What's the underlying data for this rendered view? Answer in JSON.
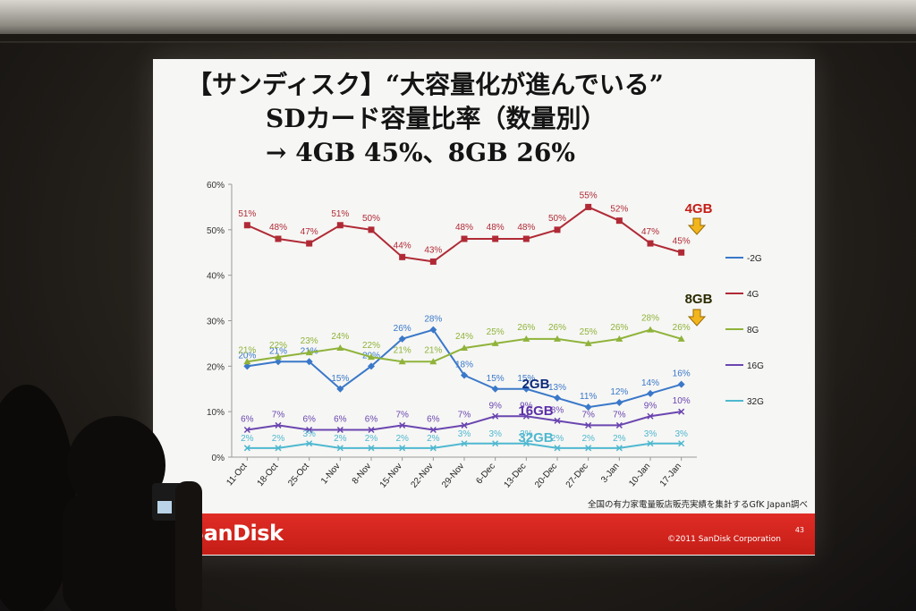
{
  "slide": {
    "title_line1": "【サンディスク】“大容量化が進んでいる”",
    "title_line2": "SDカード容量比率（数量別）",
    "title_line3": "→ 4GB 45%、8GB 26%",
    "footnote": "全国の有力家電量販店販売実績を集計するGfK Japan調べ",
    "brand": "SanDisk",
    "copyright": "©2011 SanDisk Corporation",
    "page_number": "43"
  },
  "chart_data": {
    "type": "line",
    "categories": [
      "11-Oct",
      "18-Oct",
      "25-Oct",
      "1-Nov",
      "8-Nov",
      "15-Nov",
      "22-Nov",
      "29-Nov",
      "6-Dec",
      "13-Dec",
      "20-Dec",
      "27-Dec",
      "3-Jan",
      "10-Jan",
      "17-Jan"
    ],
    "ylim": [
      0,
      60
    ],
    "yticks": [
      "0%",
      "10%",
      "20%",
      "30%",
      "40%",
      "50%",
      "60%"
    ],
    "series": [
      {
        "name": "-2G",
        "color": "#3a78c9",
        "marker": "diamond",
        "values": [
          20,
          21,
          21,
          15,
          20,
          26,
          28,
          18,
          15,
          15,
          13,
          11,
          12,
          14,
          16
        ],
        "labels": [
          "20%",
          "21%",
          "21%",
          "15%",
          "20%",
          "26%",
          "28%",
          "18%",
          "15%",
          "15%",
          "13%",
          "11%",
          "12%",
          "14%",
          "16%"
        ]
      },
      {
        "name": "4G",
        "color": "#b02a36",
        "marker": "square",
        "values": [
          51,
          48,
          47,
          51,
          50,
          44,
          43,
          48,
          48,
          48,
          50,
          55,
          52,
          47,
          45
        ],
        "labels": [
          "51%",
          "48%",
          "47%",
          "51%",
          "50%",
          "44%",
          "43%",
          "48%",
          "48%",
          "48%",
          "50%",
          "55%",
          "52%",
          "47%",
          "45%"
        ]
      },
      {
        "name": "8G",
        "color": "#8fb33a",
        "marker": "triangle",
        "values": [
          21,
          22,
          23,
          24,
          22,
          21,
          21,
          24,
          25,
          26,
          26,
          25,
          26,
          28,
          26
        ],
        "labels": [
          "21%",
          "22%",
          "23%",
          "24%",
          "22%",
          "21%",
          "21%",
          "24%",
          "25%",
          "26%",
          "26%",
          "25%",
          "26%",
          "28%",
          "26%"
        ]
      },
      {
        "name": "16G",
        "color": "#6a46b0",
        "marker": "x",
        "values": [
          6,
          7,
          6,
          6,
          6,
          7,
          6,
          7,
          9,
          9,
          8,
          7,
          7,
          9,
          10
        ],
        "labels": [
          "6%",
          "7%",
          "6%",
          "6%",
          "6%",
          "7%",
          "6%",
          "7%",
          "9%",
          "9%",
          "8%",
          "7%",
          "7%",
          "9%",
          "10%"
        ]
      },
      {
        "name": "32G",
        "color": "#4fb8d0",
        "marker": "x",
        "values": [
          2,
          2,
          3,
          2,
          2,
          2,
          2,
          3,
          3,
          3,
          2,
          2,
          2,
          3,
          3
        ],
        "labels": [
          "2%",
          "2%",
          "3%",
          "2%",
          "2%",
          "2%",
          "2%",
          "3%",
          "3%",
          "3%",
          "2%",
          "2%",
          "2%",
          "3%",
          "3%"
        ]
      }
    ],
    "legend": {
      "placement": "right"
    },
    "annotations": [
      {
        "text": "4GB",
        "color": "#c41e17"
      },
      {
        "text": "8GB",
        "color": "#2b2b00"
      },
      {
        "text": "2GB",
        "color": "#0c2a7a"
      },
      {
        "text": "16GB",
        "color": "#5b2fa8"
      },
      {
        "text": "32GB",
        "color": "#4fb8d0"
      }
    ]
  }
}
